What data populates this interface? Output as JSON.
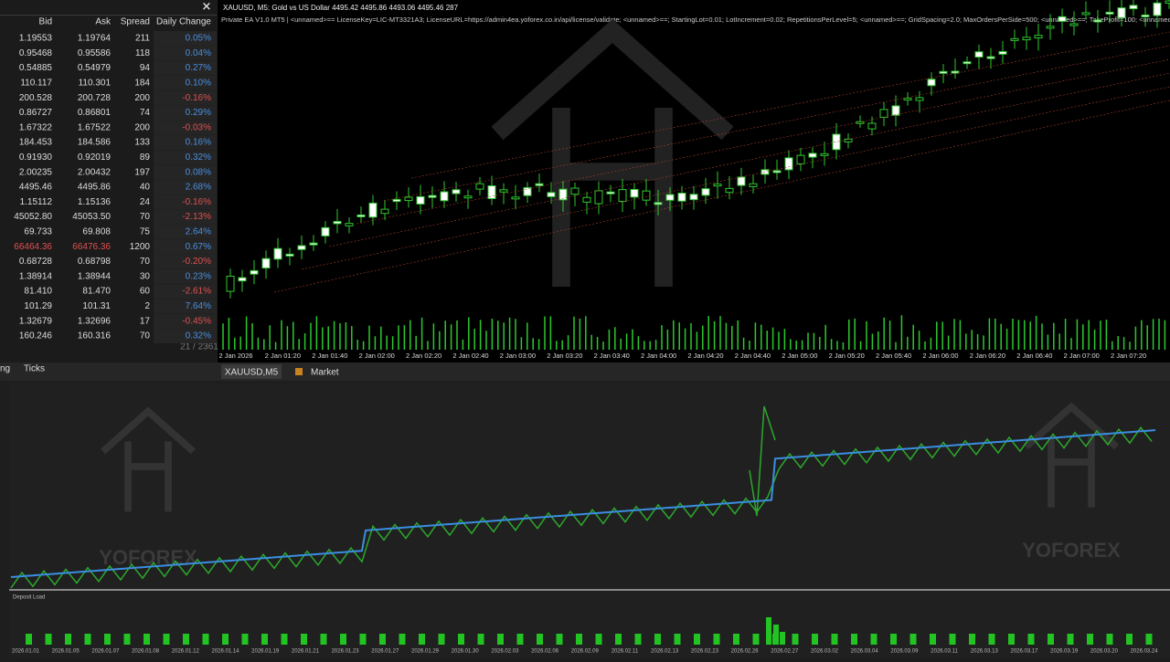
{
  "market_watch": {
    "headers": [
      "Bid",
      "Ask",
      "Spread",
      "Daily Change"
    ],
    "rows": [
      [
        "1.19553",
        "1.19764",
        "211",
        "0.05%"
      ],
      [
        "0.95468",
        "0.95586",
        "118",
        "0.04%"
      ],
      [
        "0.54885",
        "0.54979",
        "94",
        "0.27%"
      ],
      [
        "110.117",
        "110.301",
        "184",
        "0.10%"
      ],
      [
        "200.528",
        "200.728",
        "200",
        "-0.16%"
      ],
      [
        "0.86727",
        "0.86801",
        "74",
        "0.29%"
      ],
      [
        "1.67322",
        "1.67522",
        "200",
        "-0.03%"
      ],
      [
        "184.453",
        "184.586",
        "133",
        "0.16%"
      ],
      [
        "0.91930",
        "0.92019",
        "89",
        "0.32%"
      ],
      [
        "2.00235",
        "2.00432",
        "197",
        "0.08%"
      ],
      [
        "4495.46",
        "4495.86",
        "40",
        "2.68%"
      ],
      [
        "1.15112",
        "1.15136",
        "24",
        "-0.16%"
      ],
      [
        "45052.80",
        "45053.50",
        "70",
        "-2.13%"
      ],
      [
        "69.733",
        "69.808",
        "75",
        "2.64%"
      ],
      [
        "66464.36",
        "66476.36",
        "1200",
        "0.67%"
      ],
      [
        "0.68728",
        "0.68798",
        "70",
        "-0.20%"
      ],
      [
        "1.38914",
        "1.38944",
        "30",
        "0.23%"
      ],
      [
        "81.410",
        "81.470",
        "60",
        "-2.61%"
      ],
      [
        "101.29",
        "101.31",
        "2",
        "7.64%"
      ],
      [
        "1.32679",
        "1.32696",
        "17",
        "-0.45%"
      ],
      [
        "160.246",
        "160.316",
        "70",
        "0.32%"
      ]
    ],
    "footer": "21 / 2361",
    "tabs": [
      "ng",
      "Ticks"
    ]
  },
  "chart": {
    "header": "XAUUSD, M5:  Gold vs US Dollar  4495.42 4495.86 4493.06 4495.46  287",
    "ea": "Private EA V1.0 MT5 | <unnamed>== LicenseKey=LIC-MT3321A3; LicenseURL=https://admin4ea.yoforex.co.in/api/license/validate; <unnamed>==; StartingLot=0.01; LotIncrement=0.02; RepetitionsPerLevel=5; <unnamed>==; GridSpacing=2.0; MaxOrdersPerSide=500; <unnamed>==; TakeProfit=100; <unnamed>",
    "x_labels": [
      "2 Jan 2026",
      "2 Jan 01:20",
      "2 Jan 01:40",
      "2 Jan 02:00",
      "2 Jan 02:20",
      "2 Jan 02:40",
      "2 Jan 03:00",
      "2 Jan 03:20",
      "2 Jan 03:40",
      "2 Jan 04:00",
      "2 Jan 04:20",
      "2 Jan 04:40",
      "2 Jan 05:00",
      "2 Jan 05:20",
      "2 Jan 05:40",
      "2 Jan 06:00",
      "2 Jan 06:20",
      "2 Jan 06:40",
      "2 Jan 07:00",
      "2 Jan 07:20"
    ],
    "tabs": [
      "XAUUSD,M5",
      "Market"
    ]
  },
  "tester": {
    "watermark": "YOFOREX",
    "deposit_label": "Deposit Load",
    "dates": [
      "2026.01.01",
      "2026.01.05",
      "2026.01.07",
      "2026.01.08",
      "2026.01.12",
      "2026.01.14",
      "2026.01.19",
      "2026.01.21",
      "2026.01.23",
      "2026.01.27",
      "2026.01.29",
      "2026.01.30",
      "2026.02.03",
      "2026.02.06",
      "2026.02.09",
      "2026.02.11",
      "2026.02.13",
      "2026.02.23",
      "2026.02.26",
      "2026.02.27",
      "2026.03.02",
      "2026.03.04",
      "2026.03.09",
      "2026.03.11",
      "2026.03.13",
      "2026.03.17",
      "2026.03.19",
      "2026.03.20",
      "2026.03.24"
    ]
  }
}
